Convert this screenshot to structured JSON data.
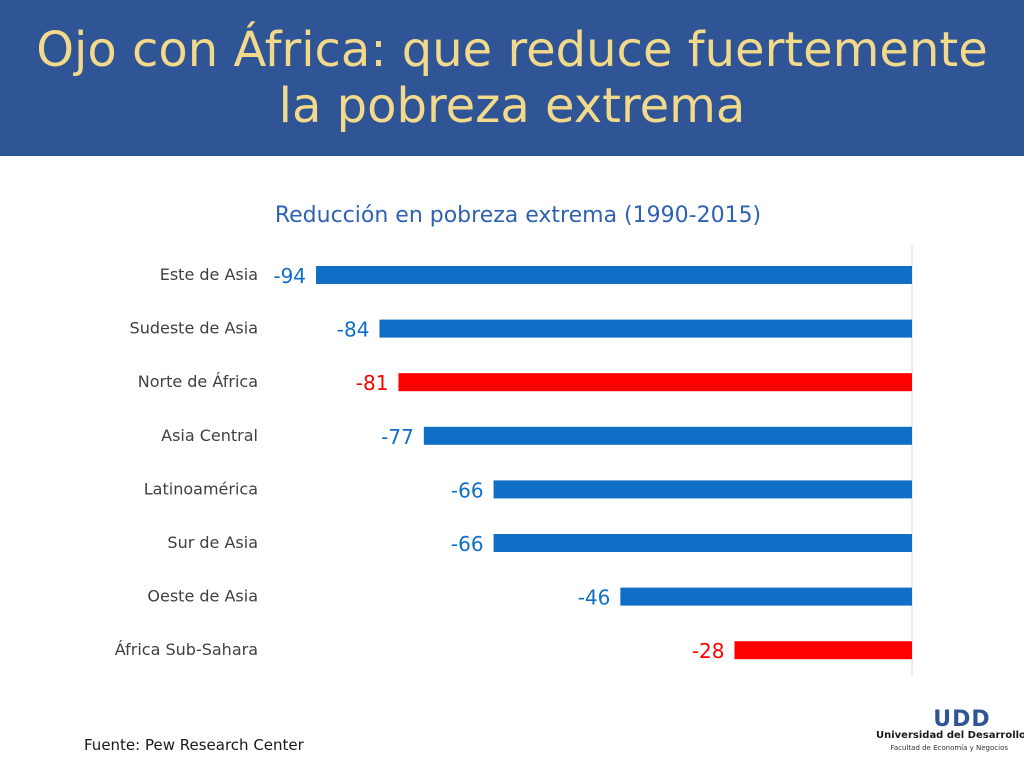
{
  "slide": {
    "title": "Ojo con África: que reduce fuertemente la pobreza extrema",
    "source": "Fuente: Pew Research Center"
  },
  "logo": {
    "mark": "UDD",
    "name": "Universidad del Desarrollo",
    "faculty": "Facultad de Economía y Negocios"
  },
  "chart_data": {
    "type": "bar",
    "orientation": "horizontal",
    "title": "Reducción en pobreza extrema (1990-2015)",
    "categories": [
      "Este de Asia",
      "Sudeste de Asia",
      "Norte de África",
      "Asia Central",
      "Latinoamérica",
      "Sur de Asia",
      "Oeste de Asia",
      "África Sub-Sahara"
    ],
    "values": [
      -94,
      -84,
      -81,
      -77,
      -66,
      -66,
      -46,
      -28
    ],
    "highlighted": [
      "Norte de África",
      "África Sub-Sahara"
    ],
    "xlim": [
      -100,
      0
    ],
    "grid": false,
    "legend": "none",
    "colors": {
      "default": "#0f6fc6",
      "highlight": "#ff0000",
      "title": "#2f62b3",
      "axis": "#d9d9d9"
    }
  }
}
